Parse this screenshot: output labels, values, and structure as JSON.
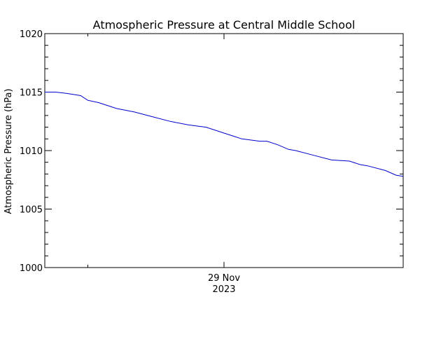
{
  "chart_data": {
    "type": "line",
    "title": "Atmospheric Pressure at Central Middle School",
    "xlabel": "",
    "ylabel": "Atmospheric Pressure (hPa)",
    "x_tick_labels": [
      {
        "line1": "29 Nov",
        "line2": "2023"
      }
    ],
    "y_tick_labels": [
      "1000",
      "1005",
      "1010",
      "1015",
      "1020"
    ],
    "ylim": [
      1000,
      1020
    ],
    "grid": false,
    "series": [
      {
        "color": "#0000cc",
        "x_fraction": [
          0.0,
          0.03,
          0.06,
          0.1,
          0.12,
          0.15,
          0.18,
          0.2,
          0.25,
          0.3,
          0.35,
          0.4,
          0.45,
          0.5,
          0.53,
          0.55,
          0.6,
          0.62,
          0.65,
          0.68,
          0.7,
          0.75,
          0.8,
          0.85,
          0.88,
          0.9,
          0.95,
          0.98,
          1.0
        ],
        "values": [
          1015.0,
          1015.0,
          1014.9,
          1014.7,
          1014.3,
          1014.1,
          1013.8,
          1013.6,
          1013.3,
          1012.9,
          1012.5,
          1012.2,
          1012.0,
          1011.5,
          1011.2,
          1011.0,
          1010.8,
          1010.8,
          1010.5,
          1010.1,
          1010.0,
          1009.6,
          1009.2,
          1009.1,
          1008.8,
          1008.7,
          1008.3,
          1007.9,
          1007.8
        ]
      }
    ]
  }
}
